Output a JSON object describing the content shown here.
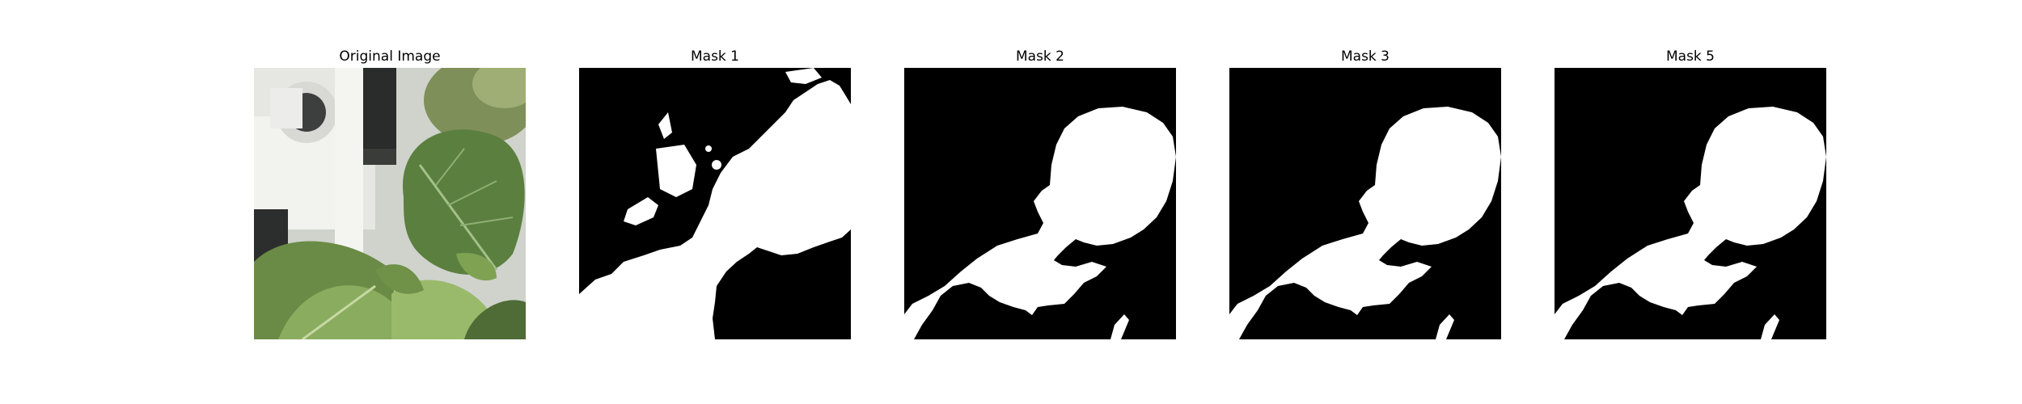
{
  "figure": {
    "panels": [
      {
        "title": "Original Image"
      },
      {
        "title": "Mask 1"
      },
      {
        "title": "Mask 2"
      },
      {
        "title": "Mask 3"
      },
      {
        "title": "Mask 5"
      }
    ]
  }
}
